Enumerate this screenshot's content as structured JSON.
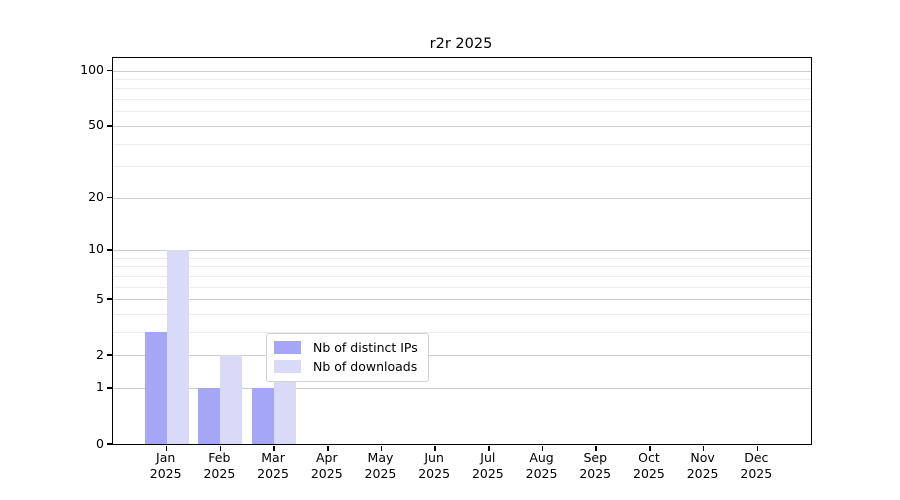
{
  "title": "r2r 2025",
  "colors": {
    "series_distinct_ips": "#a6a6f6",
    "series_downloads": "#d9d9f8",
    "grid_major": "#cccccc",
    "grid_minor": "#ececec",
    "axis": "#000000",
    "legend_border": "#d2d2d2"
  },
  "chart_data": {
    "type": "bar",
    "title": "r2r 2025",
    "categories": [
      "Jan 2025",
      "Feb 2025",
      "Mar 2025",
      "Apr 2025",
      "May 2025",
      "Jun 2025",
      "Jul 2025",
      "Aug 2025",
      "Sep 2025",
      "Oct 2025",
      "Nov 2025",
      "Dec 2025"
    ],
    "series": [
      {
        "name": "Nb of distinct IPs",
        "color": "#a6a6f6",
        "values": [
          3,
          1,
          1,
          0,
          0,
          0,
          0,
          0,
          0,
          0,
          0,
          0
        ]
      },
      {
        "name": "Nb of downloads",
        "color": "#d9d9f8",
        "values": [
          10,
          2,
          2,
          0,
          0,
          0,
          0,
          0,
          0,
          0,
          0,
          0
        ]
      }
    ],
    "xlabel": "",
    "ylabel": "",
    "yscale": "log10(1+x)",
    "ylim": [
      0,
      117
    ],
    "y_major_ticks": [
      0,
      1,
      2,
      5,
      10,
      20,
      50,
      100
    ],
    "y_minor_gridlines": [
      3,
      4,
      6,
      7,
      8,
      9,
      30,
      40,
      60,
      70,
      80,
      90
    ],
    "grid": "horizontal",
    "legend_position": "lower-center-inside"
  }
}
